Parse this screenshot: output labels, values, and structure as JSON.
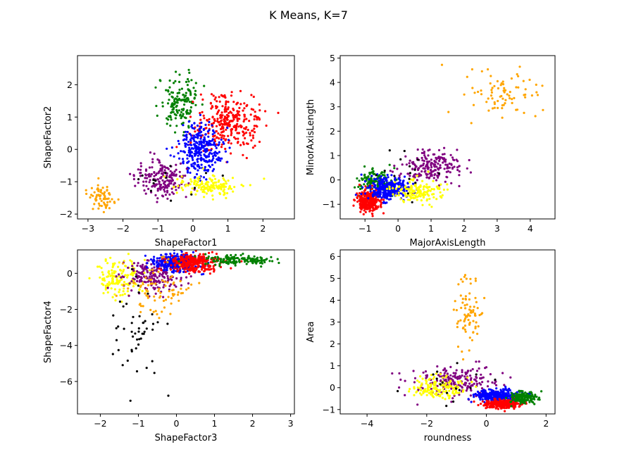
{
  "title": "K Means, K=7",
  "cluster_colors": [
    "red",
    "green",
    "blue",
    "orange",
    "purple",
    "yellow",
    "black"
  ],
  "chart_data": [
    {
      "type": "scatter",
      "xlabel": "ShapeFactor1",
      "ylabel": "ShapeFactor2",
      "xlim": [
        -3.3,
        2.9
      ],
      "ylim": [
        -2.15,
        2.9
      ],
      "xticks": [
        -3,
        -2,
        -1,
        0,
        1,
        2
      ],
      "yticks": [
        -2,
        -1,
        0,
        1,
        2
      ],
      "clusters": [
        {
          "color": "orange",
          "cx": -2.6,
          "cy": -1.5,
          "sx": 0.18,
          "sy": 0.2,
          "n": 70
        },
        {
          "color": "green",
          "cx": -0.35,
          "cy": 1.5,
          "sx": 0.3,
          "sy": 0.42,
          "n": 150
        },
        {
          "color": "red",
          "cx": 1.0,
          "cy": 0.85,
          "sx": 0.45,
          "sy": 0.42,
          "n": 300
        },
        {
          "color": "blue",
          "cx": 0.2,
          "cy": 0.0,
          "sx": 0.32,
          "sy": 0.38,
          "n": 300
        },
        {
          "color": "purple",
          "cx": -0.9,
          "cy": -0.9,
          "sx": 0.33,
          "sy": 0.28,
          "n": 180
        },
        {
          "color": "yellow",
          "cx": 0.5,
          "cy": -1.15,
          "sx": 0.45,
          "sy": 0.15,
          "n": 150
        },
        {
          "color": "black",
          "cx": -0.6,
          "cy": -1.0,
          "sx": 0.6,
          "sy": 0.25,
          "n": 15
        }
      ]
    },
    {
      "type": "scatter",
      "xlabel": "MajorAxisLength",
      "ylabel": "MinorAxisLength",
      "xlim": [
        -1.75,
        4.75
      ],
      "ylim": [
        -1.6,
        5.1
      ],
      "xticks": [
        -1,
        0,
        1,
        2,
        3,
        4
      ],
      "yticks": [
        -1,
        0,
        1,
        2,
        3,
        4,
        5
      ],
      "clusters": [
        {
          "color": "orange",
          "cx": 3.0,
          "cy": 3.4,
          "sx": 0.6,
          "sy": 0.5,
          "n": 80
        },
        {
          "color": "purple",
          "cx": 1.0,
          "cy": 0.55,
          "sx": 0.45,
          "sy": 0.35,
          "n": 200
        },
        {
          "color": "green",
          "cx": -0.7,
          "cy": -0.1,
          "sx": 0.25,
          "sy": 0.28,
          "n": 150
        },
        {
          "color": "red",
          "cx": -0.9,
          "cy": -0.85,
          "sx": 0.18,
          "sy": 0.2,
          "n": 300
        },
        {
          "color": "blue",
          "cx": -0.3,
          "cy": -0.35,
          "sx": 0.3,
          "sy": 0.22,
          "n": 300
        },
        {
          "color": "yellow",
          "cx": 0.6,
          "cy": -0.45,
          "sx": 0.38,
          "sy": 0.22,
          "n": 150
        },
        {
          "color": "black",
          "cx": 0.3,
          "cy": 0.3,
          "sx": 0.5,
          "sy": 0.5,
          "n": 15
        }
      ]
    },
    {
      "type": "scatter",
      "xlabel": "ShapeFactor3",
      "ylabel": "ShapeFactor4",
      "xlim": [
        -2.6,
        3.1
      ],
      "ylim": [
        -7.8,
        1.3
      ],
      "xticks": [
        -2,
        -1,
        0,
        1,
        2,
        3
      ],
      "yticks": [
        -6,
        -4,
        -2,
        0
      ],
      "clusters": [
        {
          "color": "yellow",
          "cx": -1.5,
          "cy": -0.3,
          "sx": 0.32,
          "sy": 0.55,
          "n": 150
        },
        {
          "color": "purple",
          "cx": -0.6,
          "cy": -0.1,
          "sx": 0.4,
          "sy": 0.45,
          "n": 200
        },
        {
          "color": "blue",
          "cx": 0.0,
          "cy": 0.55,
          "sx": 0.3,
          "sy": 0.25,
          "n": 300
        },
        {
          "color": "red",
          "cx": 0.5,
          "cy": 0.6,
          "sx": 0.3,
          "sy": 0.25,
          "n": 300
        },
        {
          "color": "green",
          "cx": 1.7,
          "cy": 0.75,
          "sx": 0.45,
          "sy": 0.12,
          "n": 150
        },
        {
          "color": "orange",
          "cx": -0.5,
          "cy": -1.0,
          "sx": 0.5,
          "sy": 0.9,
          "n": 80
        },
        {
          "color": "black",
          "cx": -1.1,
          "cy": -3.2,
          "sx": 0.35,
          "sy": 1.8,
          "n": 50
        }
      ]
    },
    {
      "type": "scatter",
      "xlabel": "roundness",
      "ylabel": "Area",
      "xlim": [
        -4.9,
        2.3
      ],
      "ylim": [
        -1.2,
        6.3
      ],
      "xticks": [
        -4,
        -2,
        0,
        2
      ],
      "yticks": [
        -1,
        0,
        1,
        2,
        3,
        4,
        5,
        6
      ],
      "clusters": [
        {
          "color": "orange",
          "cx": -0.6,
          "cy": 3.4,
          "sx": 0.25,
          "sy": 0.8,
          "n": 80
        },
        {
          "color": "purple",
          "cx": -0.9,
          "cy": 0.35,
          "sx": 0.7,
          "sy": 0.35,
          "n": 200
        },
        {
          "color": "yellow",
          "cx": -1.6,
          "cy": 0.0,
          "sx": 0.45,
          "sy": 0.25,
          "n": 150
        },
        {
          "color": "blue",
          "cx": 0.3,
          "cy": -0.35,
          "sx": 0.35,
          "sy": 0.14,
          "n": 300
        },
        {
          "color": "red",
          "cx": 0.55,
          "cy": -0.75,
          "sx": 0.3,
          "sy": 0.09,
          "n": 300
        },
        {
          "color": "green",
          "cx": 1.25,
          "cy": -0.45,
          "sx": 0.22,
          "sy": 0.14,
          "n": 150
        },
        {
          "color": "black",
          "cx": -1.0,
          "cy": 0.3,
          "sx": 0.9,
          "sy": 0.4,
          "n": 15
        }
      ]
    }
  ]
}
